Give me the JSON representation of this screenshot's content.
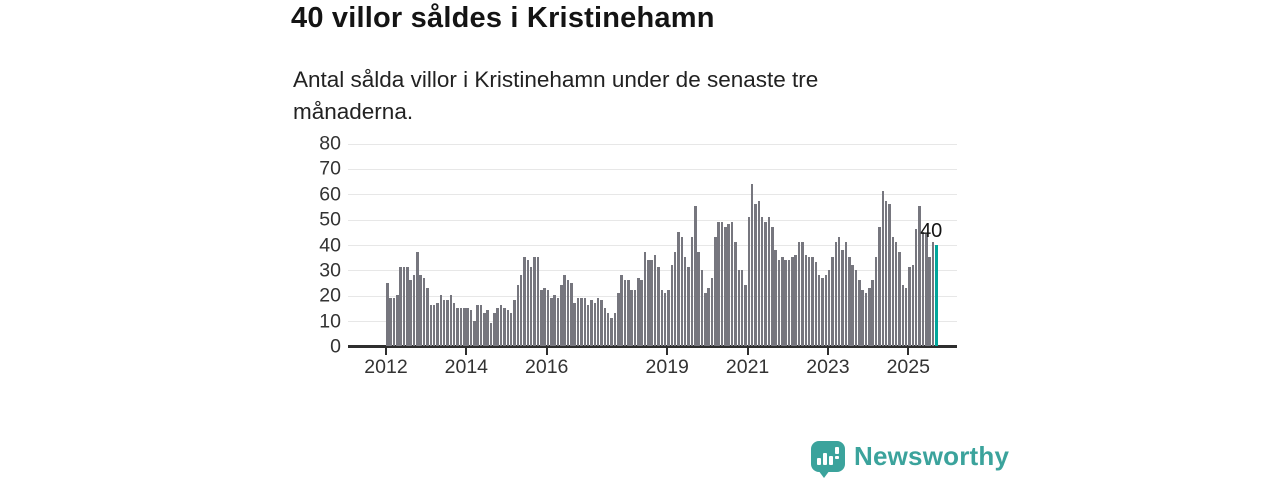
{
  "header": {
    "title": "40 villor såldes i Kristinehamn",
    "subtitle": "Antal sålda villor i Kristinehamn under de senaste tre månaderna."
  },
  "chart_data": {
    "type": "bar",
    "title": "40 villor såldes i Kristinehamn",
    "description": "Antal sålda villor i Kristinehamn under de senaste tre månaderna, rullande per månad",
    "x_start": "2012-01",
    "x_interval": "month",
    "values": [
      25,
      19,
      19,
      20,
      31,
      31,
      31,
      26,
      28,
      37,
      28,
      27,
      23,
      16,
      16,
      17,
      20,
      18,
      18,
      20,
      17,
      15,
      15,
      15,
      15,
      14,
      10,
      16,
      16,
      13,
      14,
      9,
      13,
      15,
      16,
      15,
      14,
      13,
      18,
      24,
      28,
      35,
      34,
      31,
      35,
      35,
      22,
      23,
      22,
      19,
      20,
      19,
      24,
      28,
      26,
      25,
      17,
      19,
      19,
      19,
      16,
      18,
      17,
      19,
      18,
      15,
      13,
      11,
      13,
      21,
      28,
      26,
      26,
      22,
      22,
      27,
      26,
      37,
      34,
      34,
      36,
      31,
      22,
      21,
      22,
      32,
      37,
      45,
      43,
      35,
      31,
      43,
      55,
      37,
      30,
      21,
      23,
      27,
      43,
      49,
      49,
      47,
      48,
      49,
      41,
      30,
      30,
      24,
      51,
      64,
      56,
      57,
      51,
      49,
      51,
      47,
      38,
      34,
      35,
      34,
      34,
      35,
      36,
      41,
      41,
      36,
      35,
      35,
      33,
      28,
      27,
      28,
      30,
      35,
      41,
      43,
      38,
      41,
      35,
      32,
      30,
      26,
      22,
      21,
      23,
      26,
      35,
      47,
      61,
      57,
      56,
      43,
      41,
      37,
      24,
      23,
      31,
      32,
      46,
      55,
      45,
      44,
      35,
      41,
      40
    ],
    "last_value": 40,
    "last_value_label": "40",
    "highlight_last_bar": true,
    "bar_color": "#76767e",
    "highlight_color": "#00a69b",
    "ylim": [
      0,
      80
    ],
    "yticks": [
      0,
      10,
      20,
      30,
      40,
      50,
      60,
      70,
      80
    ],
    "xtick_years": [
      2012,
      2014,
      2016,
      2019,
      2021,
      2023,
      2025
    ],
    "grid": "horizontal",
    "legend": "none"
  },
  "branding": {
    "logo_text": "Newsworthy",
    "logo_color": "#3ba39c",
    "logo_icon": "speech-bubble-bar-chart"
  }
}
